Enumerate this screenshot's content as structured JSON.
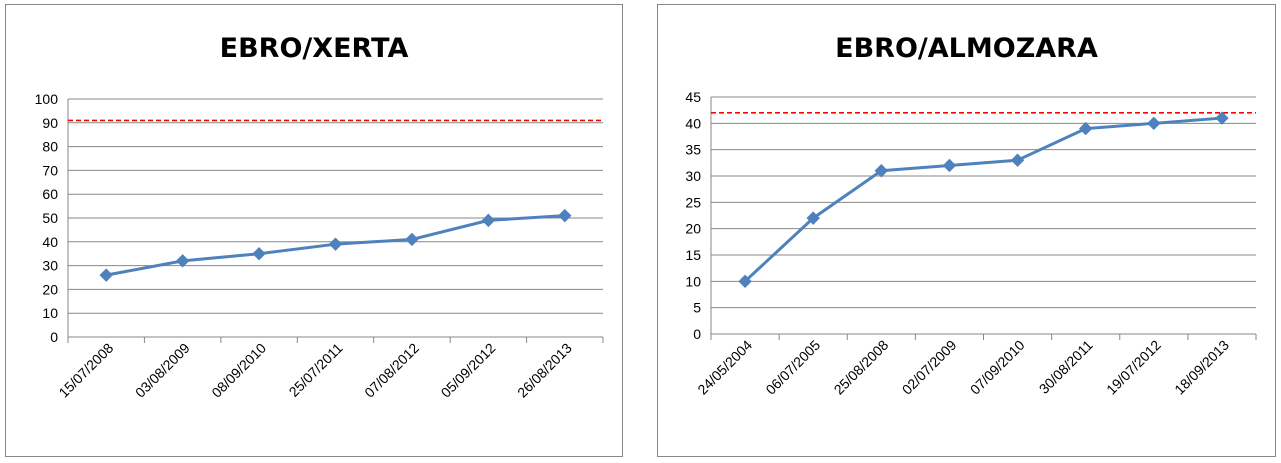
{
  "chart_data": [
    {
      "type": "line",
      "title": "EBRO/XERTA",
      "xlabel": "",
      "ylabel": "",
      "ylim": [
        0,
        100
      ],
      "yticks": [
        0,
        10,
        20,
        30,
        40,
        50,
        60,
        70,
        80,
        90,
        100
      ],
      "categories": [
        "15/07/2008",
        "03/08/2009",
        "08/09/2010",
        "25/07/2011",
        "07/08/2012",
        "05/09/2012",
        "26/08/2013"
      ],
      "series": [
        {
          "values": [
            26,
            32,
            35,
            39,
            41,
            49,
            51
          ],
          "color": "#4F81BD",
          "marker": "diamond"
        }
      ],
      "reference_line": {
        "value": 91,
        "color": "#FF0000",
        "style": "dashed"
      },
      "grid": true,
      "legend": "none"
    },
    {
      "type": "line",
      "title": "EBRO/ALMOZARA",
      "xlabel": "",
      "ylabel": "",
      "ylim": [
        0,
        45
      ],
      "yticks": [
        0,
        5,
        10,
        15,
        20,
        25,
        30,
        35,
        40,
        45
      ],
      "categories": [
        "24/05/2004",
        "06/07/2005",
        "25/08/2008",
        "02/07/2009",
        "07/09/2010",
        "30/08/2011",
        "19/07/2012",
        "18/09/2013"
      ],
      "series": [
        {
          "values": [
            10,
            22,
            31,
            32,
            33,
            39,
            40,
            41
          ],
          "color": "#4F81BD",
          "marker": "diamond"
        }
      ],
      "reference_line": {
        "value": 42,
        "color": "#FF0000",
        "style": "dashed"
      },
      "grid": true,
      "legend": "none"
    }
  ]
}
